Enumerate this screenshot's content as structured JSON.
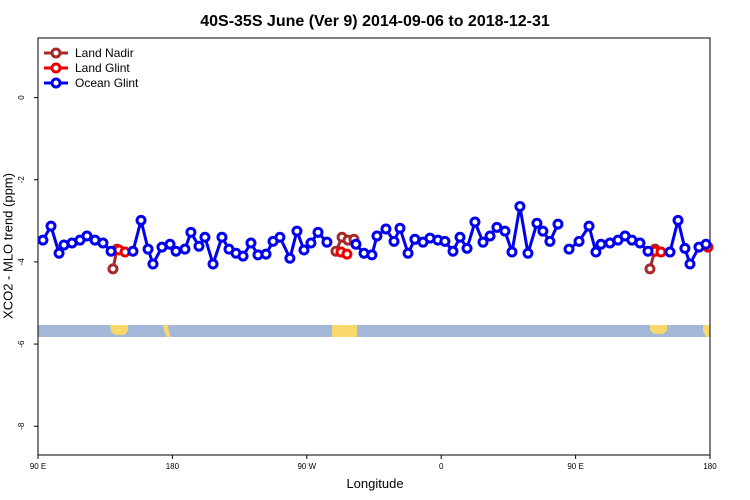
{
  "chart_data": {
    "type": "line",
    "title": "40S-35S June (Ver 9)   2014-09-06 to 2018-12-31",
    "x_label": "Longitude",
    "y_label": "XCO2 - MLO trend (ppm)",
    "xlim": [
      90,
      540
    ],
    "ylim": [
      -8.7,
      1.45
    ],
    "xticks": [
      {
        "value": 90,
        "label": "90 E"
      },
      180,
      {
        "value": 270,
        "label": "90 W"
      },
      {
        "value": 360,
        "label": "0"
      },
      {
        "value": 450,
        "label": "90 E"
      },
      {
        "value": 540,
        "label": "180"
      }
    ],
    "yticks": [
      0,
      -2,
      -4,
      -6,
      -8
    ],
    "legend": "top-left",
    "series": [
      {
        "name": "Land Nadir",
        "color": "#a52a2a",
        "x": [
          140.2,
          142.9,
          null,
          289.5,
          293.6,
          297.6,
          301.6,
          null,
          499.8,
          503.2
        ],
        "values": [
          -4.17,
          -3.69,
          null,
          -3.74,
          -3.4,
          -3.47,
          -3.45,
          null,
          -4.17,
          -3.69
        ]
      },
      {
        "name": "Land Glint",
        "color": "#ee0000",
        "x": [
          144.2,
          148.3,
          null,
          292.9,
          296.9,
          null,
          503.2,
          507.2,
          null,
          538.6
        ],
        "values": [
          -3.71,
          -3.76,
          null,
          -3.76,
          -3.81,
          null,
          -3.74,
          -3.76,
          null,
          -3.64
        ]
      },
      {
        "name": "Ocean Glint",
        "color": "#0000ee",
        "x": [
          93.3,
          98.7,
          104.1,
          107.4,
          112.8,
          118.1,
          122.8,
          128.2,
          133.5,
          138.9,
          null,
          153.6,
          159.0,
          163.7,
          167.0,
          173.0,
          178.4,
          182.4,
          188.4,
          192.4,
          197.8,
          201.8,
          207.2,
          213.2,
          217.9,
          222.6,
          227.3,
          232.6,
          237.3,
          242.7,
          247.4,
          252.0,
          258.7,
          263.4,
          268.1,
          272.8,
          277.5,
          283.5,
          null,
          302.9,
          308.3,
          313.6,
          317.0,
          323.0,
          328.4,
          332.4,
          337.8,
          342.4,
          347.8,
          352.5,
          357.8,
          362.5,
          367.9,
          372.6,
          377.3,
          382.6,
          388.0,
          392.7,
          397.3,
          402.7,
          407.4,
          412.7,
          418.1,
          424.1,
          428.1,
          432.8,
          438.2,
          null,
          445.6,
          452.3,
          459.0,
          463.6,
          467.0,
          473.0,
          478.4,
          483.1,
          487.7,
          493.1,
          498.5,
          null,
          513.2,
          518.6,
          523.2,
          526.6,
          532.6,
          537.3
        ],
        "values": [
          -3.47,
          -3.13,
          -3.79,
          -3.59,
          -3.54,
          -3.47,
          -3.37,
          -3.47,
          -3.54,
          -3.74,
          null,
          -3.74,
          -2.99,
          -3.69,
          -4.05,
          -3.64,
          -3.57,
          -3.74,
          -3.69,
          -3.28,
          -3.62,
          -3.4,
          -4.05,
          -3.4,
          -3.69,
          -3.79,
          -3.86,
          -3.54,
          -3.83,
          -3.81,
          -3.5,
          -3.4,
          -3.91,
          -3.25,
          -3.71,
          -3.54,
          -3.28,
          -3.52,
          null,
          -3.57,
          -3.79,
          -3.83,
          -3.37,
          -3.2,
          -3.5,
          -3.18,
          -3.79,
          -3.45,
          -3.52,
          -3.42,
          -3.47,
          -3.5,
          -3.74,
          -3.4,
          -3.67,
          -3.03,
          -3.52,
          -3.37,
          -3.16,
          -3.25,
          -3.76,
          -2.65,
          -3.79,
          -3.06,
          -3.25,
          -3.5,
          -3.08,
          null,
          -3.69,
          -3.5,
          -3.13,
          -3.76,
          -3.57,
          -3.54,
          -3.47,
          -3.37,
          -3.47,
          -3.54,
          -3.74,
          null,
          -3.76,
          -2.99,
          -3.67,
          -4.05,
          -3.64,
          -3.57
        ]
      }
    ]
  }
}
